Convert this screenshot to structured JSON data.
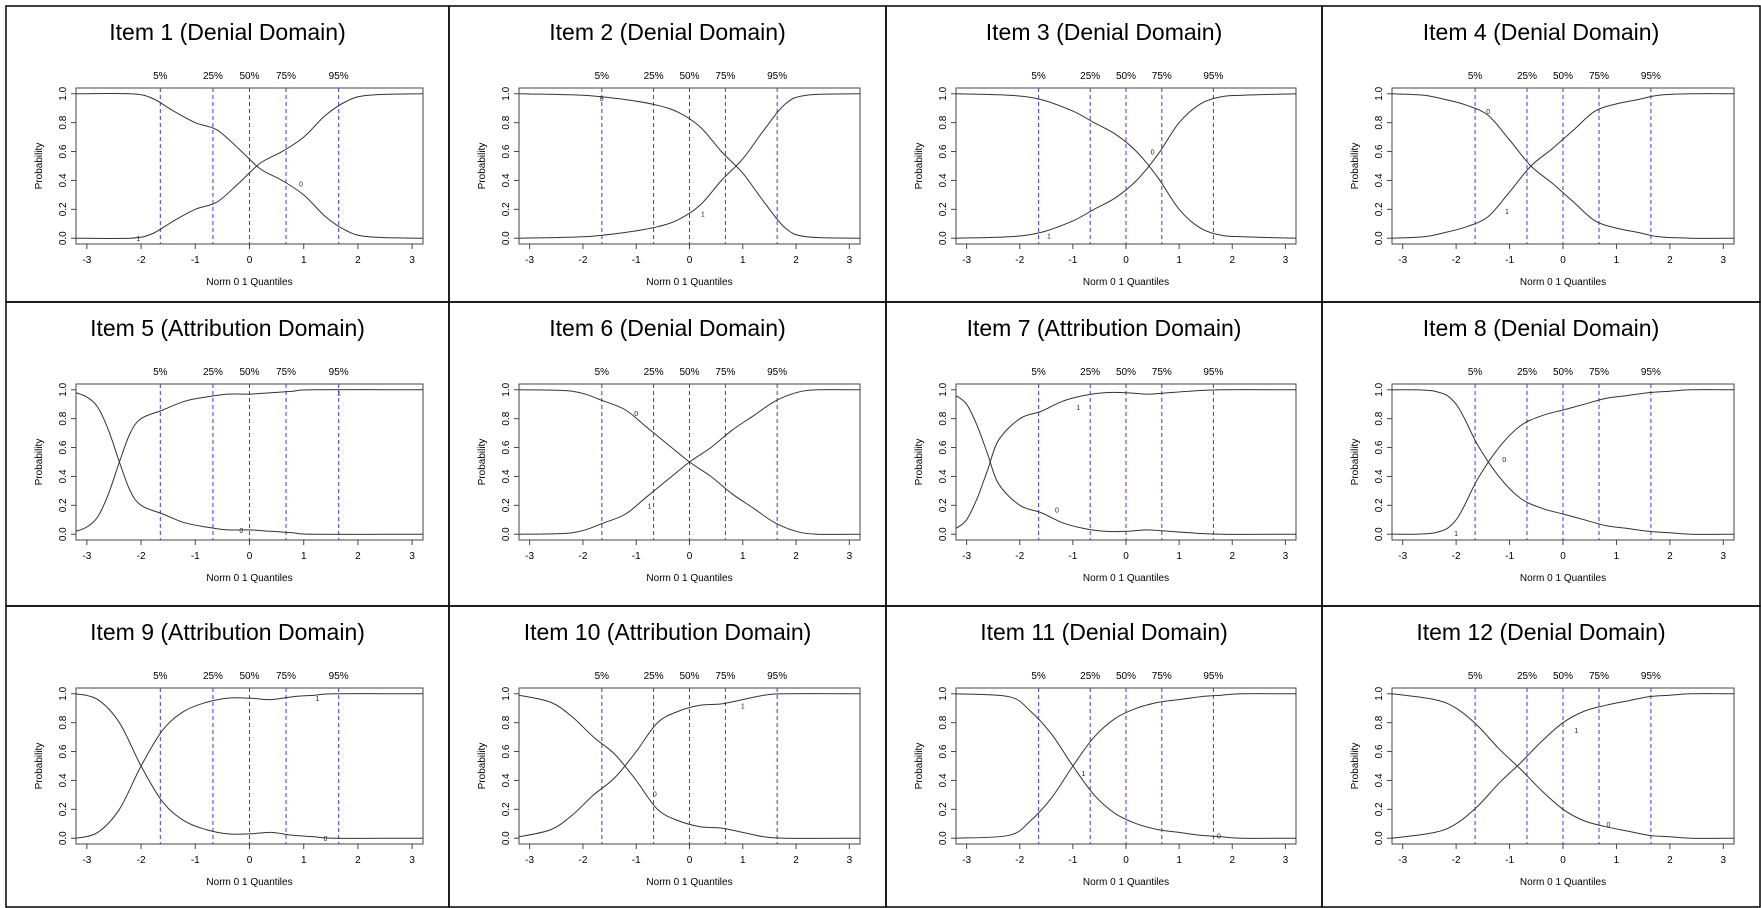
{
  "common": {
    "ylabel": "Probability",
    "xlabel": "Norm 0 1 Quantiles",
    "xticks": [
      -3,
      -2,
      -1,
      0,
      1,
      2,
      3
    ],
    "yticks": [
      "0.0",
      "0.2",
      "0.4",
      "0.6",
      "0.8",
      "1.0"
    ],
    "xlim": [
      -3.2,
      3.2
    ],
    "ylim": [
      -0.04,
      1.04
    ],
    "quantile_lines": [
      {
        "label": "5%",
        "x": -1.645
      },
      {
        "label": "25%",
        "x": -0.674
      },
      {
        "label": "50%",
        "x": 0
      },
      {
        "label": "75%",
        "x": 0.674
      },
      {
        "label": "95%",
        "x": 1.645
      }
    ],
    "curve_color": "#333333",
    "quantile_color": "#3a3aee"
  },
  "chart_data": [
    {
      "type": "line",
      "title": "Item 1 (Denial Domain)",
      "series": [
        {
          "name": "0",
          "label_pos": [
            0.95,
            0.38
          ],
          "x": [
            -3.2,
            -2.2,
            -1.8,
            -1.4,
            -1,
            -0.6,
            -0.2,
            0.2,
            0.6,
            1,
            1.4,
            1.8,
            2.2,
            3.2
          ],
          "values": [
            1,
            1,
            0.97,
            0.88,
            0.8,
            0.75,
            0.62,
            0.48,
            0.4,
            0.3,
            0.15,
            0.05,
            0.01,
            0
          ]
        },
        {
          "name": "1",
          "label_pos": [
            -2.05,
            0.0
          ],
          "x": [
            -3.2,
            -2.2,
            -1.8,
            -1.4,
            -1,
            -0.6,
            -0.2,
            0.2,
            0.6,
            1,
            1.4,
            1.8,
            2.2,
            3.2
          ],
          "values": [
            0,
            0,
            0.03,
            0.12,
            0.2,
            0.25,
            0.38,
            0.52,
            0.6,
            0.7,
            0.85,
            0.95,
            0.99,
            1
          ]
        }
      ]
    },
    {
      "type": "line",
      "title": "Item 2 (Denial Domain)",
      "series": [
        {
          "name": "0",
          "label_pos": [
            -1.65,
            0.97
          ],
          "x": [
            -3.2,
            -2,
            -1.2,
            -0.6,
            -0.2,
            0.2,
            0.6,
            1,
            1.4,
            1.8,
            2.2,
            3.2
          ],
          "values": [
            1,
            0.99,
            0.96,
            0.92,
            0.87,
            0.77,
            0.6,
            0.45,
            0.25,
            0.07,
            0.01,
            0
          ]
        },
        {
          "name": "1",
          "label_pos": [
            0.25,
            0.17
          ],
          "x": [
            -3.2,
            -2,
            -1.2,
            -0.6,
            -0.2,
            0.2,
            0.6,
            1,
            1.4,
            1.8,
            2.2,
            3.2
          ],
          "values": [
            0,
            0.01,
            0.04,
            0.08,
            0.13,
            0.23,
            0.4,
            0.55,
            0.75,
            0.93,
            0.99,
            1
          ]
        }
      ]
    },
    {
      "type": "line",
      "title": "Item 3 (Denial Domain)",
      "series": [
        {
          "name": "0",
          "label_pos": [
            0.5,
            0.6
          ],
          "x": [
            -3.2,
            -2.2,
            -1.6,
            -1,
            -0.6,
            -0.2,
            0.2,
            0.6,
            1,
            1.4,
            1.8,
            2.2,
            3.2
          ],
          "values": [
            1,
            0.99,
            0.96,
            0.88,
            0.8,
            0.72,
            0.6,
            0.42,
            0.2,
            0.07,
            0.02,
            0.01,
            0
          ]
        },
        {
          "name": "1",
          "label_pos": [
            -1.45,
            0.02
          ],
          "x": [
            -3.2,
            -2.2,
            -1.6,
            -1,
            -0.6,
            -0.2,
            0.2,
            0.6,
            1,
            1.4,
            1.8,
            2.2,
            3.2
          ],
          "values": [
            0,
            0.01,
            0.04,
            0.12,
            0.2,
            0.28,
            0.4,
            0.58,
            0.8,
            0.93,
            0.98,
            0.99,
            1
          ]
        }
      ]
    },
    {
      "type": "line",
      "title": "Item 4 (Denial Domain)",
      "series": [
        {
          "name": "0",
          "label_pos": [
            -1.4,
            0.88
          ],
          "x": [
            -3.2,
            -2.6,
            -2.2,
            -1.8,
            -1.4,
            -1,
            -0.6,
            -0.2,
            0.2,
            0.6,
            1,
            1.4,
            1.8,
            2.4,
            3.2
          ],
          "values": [
            1,
            0.99,
            0.96,
            0.92,
            0.85,
            0.68,
            0.5,
            0.38,
            0.25,
            0.12,
            0.07,
            0.04,
            0.01,
            0.0,
            0
          ]
        },
        {
          "name": "1",
          "label_pos": [
            -1.05,
            0.19
          ],
          "x": [
            -3.2,
            -2.6,
            -2.2,
            -1.8,
            -1.4,
            -1,
            -0.6,
            -0.2,
            0.2,
            0.6,
            1,
            1.4,
            1.8,
            2.4,
            3.2
          ],
          "values": [
            0,
            0.01,
            0.04,
            0.08,
            0.15,
            0.32,
            0.5,
            0.62,
            0.75,
            0.88,
            0.93,
            0.96,
            0.99,
            1,
            1
          ]
        }
      ]
    },
    {
      "type": "line",
      "title": "Item 5 (Attribution Domain)",
      "series": [
        {
          "name": "0",
          "label_pos": [
            -0.15,
            0.03
          ],
          "x": [
            -3.2,
            -3,
            -2.8,
            -2.6,
            -2.4,
            -2.2,
            -2,
            -1.6,
            -1.2,
            -0.8,
            -0.4,
            0,
            0.4,
            0.8,
            1.2,
            3.2
          ],
          "values": [
            0.98,
            0.95,
            0.88,
            0.72,
            0.5,
            0.3,
            0.2,
            0.14,
            0.08,
            0.05,
            0.03,
            0.03,
            0.02,
            0.01,
            0.0,
            0
          ]
        },
        {
          "name": "1",
          "label_pos": [
            1.65,
            0.98
          ],
          "x": [
            -3.2,
            -3,
            -2.8,
            -2.6,
            -2.4,
            -2.2,
            -2,
            -1.6,
            -1.2,
            -0.8,
            -0.4,
            0,
            0.4,
            0.8,
            1.2,
            3.2
          ],
          "values": [
            0.02,
            0.05,
            0.12,
            0.28,
            0.5,
            0.7,
            0.8,
            0.86,
            0.92,
            0.95,
            0.97,
            0.97,
            0.98,
            0.99,
            1,
            1
          ]
        }
      ]
    },
    {
      "type": "line",
      "title": "Item 6 (Denial Domain)",
      "series": [
        {
          "name": "0",
          "label_pos": [
            -1.0,
            0.84
          ],
          "x": [
            -3.2,
            -2.2,
            -1.6,
            -1.2,
            -0.8,
            -0.4,
            0,
            0.4,
            0.8,
            1.2,
            1.6,
            2,
            2.4,
            3.2
          ],
          "values": [
            1,
            0.99,
            0.92,
            0.86,
            0.74,
            0.62,
            0.5,
            0.4,
            0.28,
            0.18,
            0.08,
            0.02,
            0.0,
            0
          ]
        },
        {
          "name": "1",
          "label_pos": [
            -0.75,
            0.2
          ],
          "x": [
            -3.2,
            -2.2,
            -1.6,
            -1.2,
            -0.8,
            -0.4,
            0,
            0.4,
            0.8,
            1.2,
            1.6,
            2,
            2.4,
            3.2
          ],
          "values": [
            0,
            0.01,
            0.08,
            0.14,
            0.26,
            0.38,
            0.5,
            0.6,
            0.72,
            0.82,
            0.92,
            0.98,
            1,
            1
          ]
        }
      ]
    },
    {
      "type": "line",
      "title": "Item 7 (Attribution Domain)",
      "series": [
        {
          "name": "0",
          "label_pos": [
            -1.3,
            0.17
          ],
          "x": [
            -3.2,
            -3,
            -2.8,
            -2.6,
            -2.4,
            -2,
            -1.6,
            -1.2,
            -0.8,
            -0.4,
            0,
            0.4,
            0.8,
            1.2,
            1.8,
            3.2
          ],
          "values": [
            0.96,
            0.9,
            0.75,
            0.55,
            0.35,
            0.2,
            0.15,
            0.08,
            0.04,
            0.02,
            0.02,
            0.03,
            0.02,
            0.01,
            0.0,
            0
          ]
        },
        {
          "name": "1",
          "label_pos": [
            -0.9,
            0.88
          ],
          "x": [
            -3.2,
            -3,
            -2.8,
            -2.6,
            -2.4,
            -2,
            -1.6,
            -1.2,
            -0.8,
            -0.4,
            0,
            0.4,
            0.8,
            1.2,
            1.8,
            3.2
          ],
          "values": [
            0.04,
            0.1,
            0.25,
            0.45,
            0.65,
            0.8,
            0.85,
            0.92,
            0.96,
            0.98,
            0.98,
            0.97,
            0.98,
            0.99,
            1,
            1
          ]
        }
      ]
    },
    {
      "type": "line",
      "title": "Item 8 (Denial Domain)",
      "series": [
        {
          "name": "0",
          "label_pos": [
            -1.1,
            0.52
          ],
          "x": [
            -3.2,
            -2.4,
            -2,
            -1.6,
            -1.2,
            -0.8,
            -0.4,
            0,
            0.4,
            0.8,
            1.2,
            1.6,
            2,
            2.4,
            3.2
          ],
          "values": [
            1,
            0.99,
            0.9,
            0.62,
            0.4,
            0.25,
            0.18,
            0.14,
            0.1,
            0.06,
            0.04,
            0.02,
            0.01,
            0.0,
            0
          ]
        },
        {
          "name": "1",
          "label_pos": [
            -2.0,
            0.01
          ],
          "x": [
            -3.2,
            -2.4,
            -2,
            -1.6,
            -1.2,
            -0.8,
            -0.4,
            0,
            0.4,
            0.8,
            1.2,
            1.6,
            2,
            2.4,
            3.2
          ],
          "values": [
            0,
            0.01,
            0.1,
            0.38,
            0.6,
            0.75,
            0.82,
            0.86,
            0.9,
            0.94,
            0.96,
            0.98,
            0.99,
            1,
            1
          ]
        }
      ]
    },
    {
      "type": "line",
      "title": "Item 9 (Attribution Domain)",
      "series": [
        {
          "name": "0",
          "label_pos": [
            1.4,
            0.0
          ],
          "x": [
            -3.2,
            -2.8,
            -2.4,
            -2,
            -1.6,
            -1.2,
            -0.8,
            -0.4,
            0,
            0.4,
            0.8,
            1.2,
            1.6,
            3.2
          ],
          "values": [
            1,
            0.96,
            0.8,
            0.5,
            0.25,
            0.12,
            0.06,
            0.03,
            0.03,
            0.04,
            0.02,
            0.01,
            0.0,
            0
          ]
        },
        {
          "name": "1",
          "label_pos": [
            1.25,
            0.97
          ],
          "x": [
            -3.2,
            -2.8,
            -2.4,
            -2,
            -1.6,
            -1.2,
            -0.8,
            -0.4,
            0,
            0.4,
            0.8,
            1.2,
            1.6,
            3.2
          ],
          "values": [
            0,
            0.04,
            0.2,
            0.5,
            0.75,
            0.88,
            0.94,
            0.97,
            0.97,
            0.96,
            0.98,
            0.99,
            1,
            1
          ]
        }
      ]
    },
    {
      "type": "line",
      "title": "Item 10 (Attribution Domain)",
      "series": [
        {
          "name": "0",
          "label_pos": [
            -0.65,
            0.31
          ],
          "x": [
            -3.2,
            -2.6,
            -2.2,
            -1.8,
            -1.4,
            -1,
            -0.6,
            -0.2,
            0.2,
            0.6,
            1,
            1.4,
            1.8,
            3.2
          ],
          "values": [
            0.99,
            0.94,
            0.84,
            0.7,
            0.58,
            0.4,
            0.2,
            0.12,
            0.08,
            0.07,
            0.04,
            0.01,
            0.0,
            0
          ]
        },
        {
          "name": "1",
          "label_pos": [
            1.0,
            0.92
          ],
          "x": [
            -3.2,
            -2.6,
            -2.2,
            -1.8,
            -1.4,
            -1,
            -0.6,
            -0.2,
            0.2,
            0.6,
            1,
            1.4,
            1.8,
            3.2
          ],
          "values": [
            0.01,
            0.06,
            0.16,
            0.3,
            0.42,
            0.6,
            0.8,
            0.88,
            0.92,
            0.93,
            0.96,
            0.99,
            1,
            1
          ]
        }
      ]
    },
    {
      "type": "line",
      "title": "Item 11 (Denial Domain)",
      "series": [
        {
          "name": "0",
          "label_pos": [
            1.75,
            0.02
          ],
          "x": [
            -3.2,
            -2.2,
            -1.8,
            -1.4,
            -1,
            -0.6,
            -0.2,
            0.2,
            0.6,
            1,
            1.4,
            1.8,
            2.2,
            3.2
          ],
          "values": [
            1,
            0.98,
            0.88,
            0.72,
            0.5,
            0.3,
            0.17,
            0.1,
            0.06,
            0.04,
            0.02,
            0.01,
            0.0,
            0
          ]
        },
        {
          "name": "1",
          "label_pos": [
            -0.8,
            0.45
          ],
          "x": [
            -3.2,
            -2.2,
            -1.8,
            -1.4,
            -1,
            -0.6,
            -0.2,
            0.2,
            0.6,
            1,
            1.4,
            1.8,
            2.2,
            3.2
          ],
          "values": [
            0,
            0.02,
            0.12,
            0.28,
            0.5,
            0.7,
            0.83,
            0.9,
            0.94,
            0.96,
            0.98,
            0.99,
            1,
            1
          ]
        }
      ]
    },
    {
      "type": "line",
      "title": "Item 12 (Denial Domain)",
      "series": [
        {
          "name": "0",
          "label_pos": [
            0.85,
            0.1
          ],
          "x": [
            -3.2,
            -2.4,
            -2,
            -1.6,
            -1.2,
            -0.8,
            -0.4,
            0,
            0.4,
            0.8,
            1.2,
            1.6,
            2,
            2.4,
            3.2
          ],
          "values": [
            1,
            0.96,
            0.9,
            0.78,
            0.62,
            0.48,
            0.33,
            0.2,
            0.12,
            0.08,
            0.05,
            0.02,
            0.01,
            0.0,
            0
          ]
        },
        {
          "name": "1",
          "label_pos": [
            0.25,
            0.75
          ],
          "x": [
            -3.2,
            -2.4,
            -2,
            -1.6,
            -1.2,
            -0.8,
            -0.4,
            0,
            0.4,
            0.8,
            1.2,
            1.6,
            2,
            2.4,
            3.2
          ],
          "values": [
            0,
            0.04,
            0.1,
            0.22,
            0.38,
            0.52,
            0.67,
            0.8,
            0.88,
            0.92,
            0.95,
            0.98,
            0.99,
            1,
            1
          ]
        }
      ]
    }
  ]
}
